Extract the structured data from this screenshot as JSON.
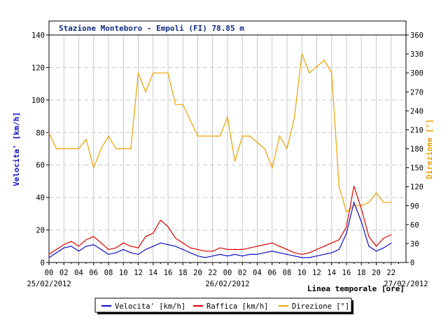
{
  "chart_data": {
    "type": "line",
    "title": "Stazione Monteboro - Empoli (FI) 78.85 m",
    "xlabel": "Linea temporale [ore]",
    "ylabel_left": "Velocita' [km/h]",
    "ylabel_right": "Direzione [°]",
    "ylim_left": [
      0,
      140
    ],
    "ylim_right": [
      0,
      360
    ],
    "y_ticks_left": [
      "0",
      "20",
      "40",
      "60",
      "80",
      "100",
      "120",
      "140"
    ],
    "y_ticks_right": [
      "0",
      "30",
      "60",
      "90",
      "120",
      "150",
      "180",
      "210",
      "240",
      "270",
      "300",
      "330",
      "360"
    ],
    "x_tick_labels": [
      "00",
      "02",
      "04",
      "06",
      "08",
      "10",
      "12",
      "14",
      "16",
      "18",
      "20",
      "22",
      "00",
      "02",
      "04",
      "06",
      "08",
      "10",
      "12",
      "14",
      "16",
      "18",
      "20",
      "22"
    ],
    "date_labels": [
      "25/02/2012",
      "26/02/2012",
      "27/02/2012"
    ],
    "grid": true,
    "legend_position": "bottom",
    "hours": [
      0,
      1,
      2,
      3,
      4,
      5,
      6,
      7,
      8,
      9,
      10,
      11,
      12,
      13,
      14,
      15,
      16,
      17,
      18,
      19,
      20,
      21,
      22,
      23,
      24,
      25,
      26,
      27,
      28,
      29,
      30,
      31,
      32,
      33,
      34,
      35,
      36,
      37,
      38,
      39,
      40,
      41,
      42,
      43,
      44,
      45,
      46
    ],
    "series": [
      {
        "name": "Velocita' [km/h]",
        "color": "#1010c8",
        "axis": "left",
        "values": [
          3,
          6,
          9,
          10,
          7,
          10,
          11,
          8,
          5,
          6,
          8,
          6,
          5,
          8,
          10,
          12,
          11,
          10,
          8,
          6,
          4,
          3,
          4,
          5,
          4,
          5,
          4,
          5,
          5,
          6,
          7,
          6,
          5,
          4,
          3,
          3,
          4,
          5,
          6,
          8,
          18,
          37,
          25,
          10,
          7,
          9,
          12
        ]
      },
      {
        "name": "Raffica [km/h]",
        "color": "#e00000",
        "axis": "left",
        "values": [
          5,
          8,
          11,
          13,
          10,
          14,
          16,
          12,
          8,
          9,
          12,
          10,
          9,
          16,
          18,
          26,
          22,
          15,
          12,
          9,
          8,
          7,
          7,
          9,
          8,
          8,
          8,
          9,
          10,
          11,
          12,
          10,
          8,
          6,
          5,
          6,
          8,
          10,
          12,
          14,
          22,
          47,
          33,
          16,
          10,
          15,
          17
        ]
      },
      {
        "name": "Direzione [°]",
        "color": "#f0a000",
        "axis": "right",
        "values": [
          205,
          180,
          180,
          180,
          180,
          195,
          150,
          180,
          200,
          180,
          180,
          180,
          300,
          270,
          300,
          300,
          300,
          250,
          250,
          225,
          200,
          200,
          200,
          200,
          230,
          160,
          200,
          200,
          190,
          180,
          150,
          200,
          180,
          230,
          330,
          300,
          310,
          320,
          300,
          120,
          80,
          90,
          90,
          95,
          110,
          95,
          95
        ]
      }
    ]
  }
}
